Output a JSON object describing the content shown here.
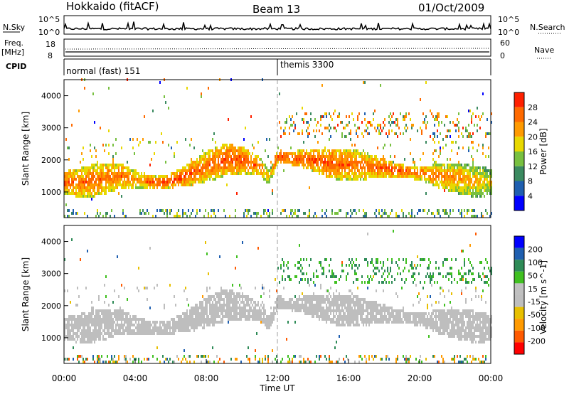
{
  "header": {
    "station": "Hokkaido (fitACF)",
    "beam": "Beam 13",
    "date": "01/Oct/2009"
  },
  "top_panels": {
    "nsky_label": "N.Sky",
    "nsky_ticks": [
      "10^5",
      "10^0"
    ],
    "nsearch_label": "N.Search",
    "nsearch_ticks": [
      "10^5",
      "10^0"
    ],
    "freq_label_1": "Freq.",
    "freq_label_2": "[MHz]",
    "freq_ticks": [
      "18",
      "8"
    ],
    "nave_label": "Nave",
    "nave_ticks": [
      "60",
      "0"
    ],
    "cpid_label": "CPID",
    "cpid_segments": [
      {
        "label": "normal (fast) 151",
        "start_hour": 0
      },
      {
        "label": "themis 3300",
        "start_hour": 12
      }
    ]
  },
  "colors": {
    "power_scale": [
      "#0000ff",
      "#1f5fb0",
      "#3b8a60",
      "#78c040",
      "#e8d800",
      "#ff9a00",
      "#ff6a00",
      "#ff2000"
    ],
    "velocity_scale": [
      "#ff0000",
      "#ff5a00",
      "#ff9a00",
      "#e8c000",
      "#bebebe",
      "#c0c0c0",
      "#40c020",
      "#2e8b57",
      "#1f5fb0",
      "#0000ff"
    ]
  },
  "chart_data": [
    {
      "type": "heatmap",
      "title": "",
      "xlabel": "",
      "ylabel": "Slant Range [km]",
      "x_ticks": [
        "00:00",
        "04:00",
        "08:00",
        "12:00",
        "16:00",
        "20:00",
        "00:00"
      ],
      "y_ticks": [
        "1000",
        "2000",
        "3000",
        "4000"
      ],
      "xlim": [
        0,
        24
      ],
      "ylim": [
        200,
        4500
      ],
      "colorbar": {
        "label": "Power [dB]",
        "ticks": [
          "4",
          "8",
          "12",
          "16",
          "20",
          "24",
          "28"
        ],
        "range": [
          0,
          32
        ]
      },
      "echo_bands": [
        {
          "name": "main",
          "hours": [
            0,
            1,
            2,
            3,
            4,
            5,
            6,
            7,
            8,
            9,
            10,
            11,
            11.5,
            12,
            13,
            14,
            15,
            16,
            17,
            18,
            19,
            20,
            21,
            22,
            23,
            24
          ],
          "center_km": [
            1250,
            1250,
            1350,
            1450,
            1350,
            1250,
            1300,
            1500,
            1750,
            1950,
            1950,
            1750,
            1400,
            2050,
            2000,
            1950,
            1850,
            1800,
            1750,
            1700,
            1600,
            1550,
            1450,
            1400,
            1300,
            1250
          ],
          "power_db": [
            28,
            26,
            26,
            26,
            24,
            28,
            28,
            28,
            26,
            28,
            28,
            26,
            20,
            28,
            28,
            28,
            28,
            26,
            26,
            28,
            28,
            26,
            26,
            24,
            22,
            20
          ]
        }
      ]
    },
    {
      "type": "heatmap",
      "title": "",
      "xlabel": "Time UT",
      "ylabel": "Slant Range [km]",
      "x_ticks": [
        "00:00",
        "04:00",
        "08:00",
        "12:00",
        "16:00",
        "20:00",
        "00:00"
      ],
      "y_ticks": [
        "1000",
        "2000",
        "3000",
        "4000"
      ],
      "xlim": [
        0,
        24
      ],
      "ylim": [
        200,
        4500
      ],
      "colorbar": {
        "label": "Velocity [m s^-1]",
        "ticks": [
          "200",
          "100",
          "50",
          "15",
          "-15",
          "-50",
          "-100",
          "-200"
        ],
        "range": [
          -250,
          250
        ]
      }
    }
  ]
}
